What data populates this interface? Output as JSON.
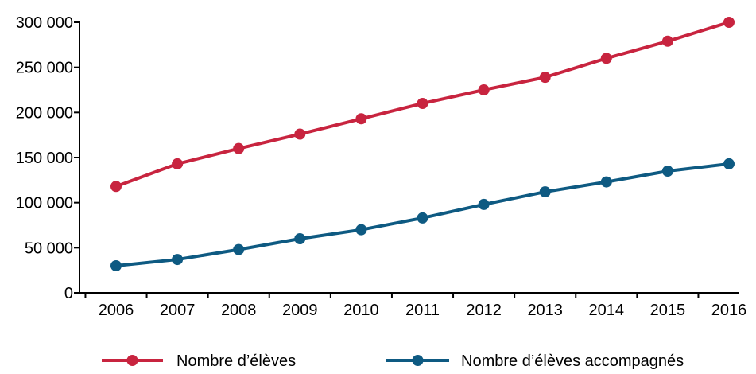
{
  "chart_data": {
    "type": "line",
    "title": "",
    "xlabel": "",
    "ylabel": "",
    "categories": [
      "2006",
      "2007",
      "2008",
      "2009",
      "2010",
      "2011",
      "2012",
      "2013",
      "2014",
      "2015",
      "2016"
    ],
    "ylim": [
      0,
      300000
    ],
    "yticks": [
      0,
      50000,
      100000,
      150000,
      200000,
      250000,
      300000
    ],
    "ytick_labels": [
      "0",
      "50 000",
      "100 000",
      "150 000",
      "200 000",
      "250 000",
      "300 000"
    ],
    "grid": false,
    "legend_position": "bottom",
    "series": [
      {
        "name": "Nombre d’élèves",
        "color": "#c8243f",
        "values": [
          118000,
          143000,
          160000,
          176000,
          193000,
          210000,
          225000,
          239000,
          260000,
          279000,
          300000
        ]
      },
      {
        "name": "Nombre d’élèves accompagnés",
        "color": "#0e5a82",
        "values": [
          30000,
          37000,
          48000,
          60000,
          70000,
          83000,
          98000,
          112000,
          123000,
          135000,
          143000
        ]
      }
    ]
  }
}
